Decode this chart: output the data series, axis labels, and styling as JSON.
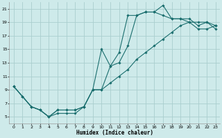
{
  "xlabel": "Humidex (Indice chaleur)",
  "bg_color": "#ceeaea",
  "grid_color": "#aacece",
  "line_color": "#1a6e6e",
  "xlim": [
    -0.5,
    23.5
  ],
  "ylim": [
    4,
    22
  ],
  "xticks": [
    0,
    1,
    2,
    3,
    4,
    5,
    6,
    7,
    8,
    9,
    10,
    11,
    12,
    13,
    14,
    15,
    16,
    17,
    18,
    19,
    20,
    21,
    22,
    23
  ],
  "yticks": [
    5,
    7,
    9,
    11,
    13,
    15,
    17,
    19,
    21
  ],
  "line1_x": [
    0,
    1,
    2,
    3,
    4,
    5,
    6,
    7,
    8,
    9,
    10,
    11,
    12,
    13,
    14,
    15,
    16,
    17,
    18,
    19,
    20,
    21,
    22,
    23
  ],
  "line1_y": [
    9.5,
    8.0,
    6.5,
    6.0,
    5.0,
    6.0,
    6.0,
    6.0,
    6.5,
    9.0,
    15.0,
    12.5,
    14.5,
    20.0,
    20.0,
    20.5,
    20.5,
    21.5,
    19.5,
    19.5,
    19.0,
    19.0,
    19.0,
    18.5
  ],
  "line2_x": [
    0,
    1,
    2,
    3,
    4,
    5,
    6,
    7,
    8,
    9,
    10,
    11,
    12,
    13,
    14,
    15,
    16,
    17,
    18,
    19,
    20,
    21,
    22,
    23
  ],
  "line2_y": [
    9.5,
    8.0,
    6.5,
    6.0,
    5.0,
    6.0,
    6.0,
    6.0,
    6.5,
    9.0,
    9.0,
    12.5,
    13.0,
    15.5,
    20.0,
    20.5,
    20.5,
    20.0,
    19.5,
    19.5,
    19.5,
    18.5,
    19.0,
    18.0
  ],
  "line3_x": [
    0,
    1,
    2,
    3,
    4,
    5,
    6,
    7,
    8,
    9,
    10,
    11,
    12,
    13,
    14,
    15,
    16,
    17,
    18,
    19,
    20,
    21,
    22,
    23
  ],
  "line3_y": [
    9.5,
    8.0,
    6.5,
    6.0,
    5.0,
    5.5,
    5.5,
    5.5,
    6.5,
    9.0,
    9.0,
    10.0,
    11.0,
    12.0,
    13.5,
    14.5,
    15.5,
    16.5,
    17.5,
    18.5,
    19.0,
    18.0,
    18.0,
    18.5
  ]
}
